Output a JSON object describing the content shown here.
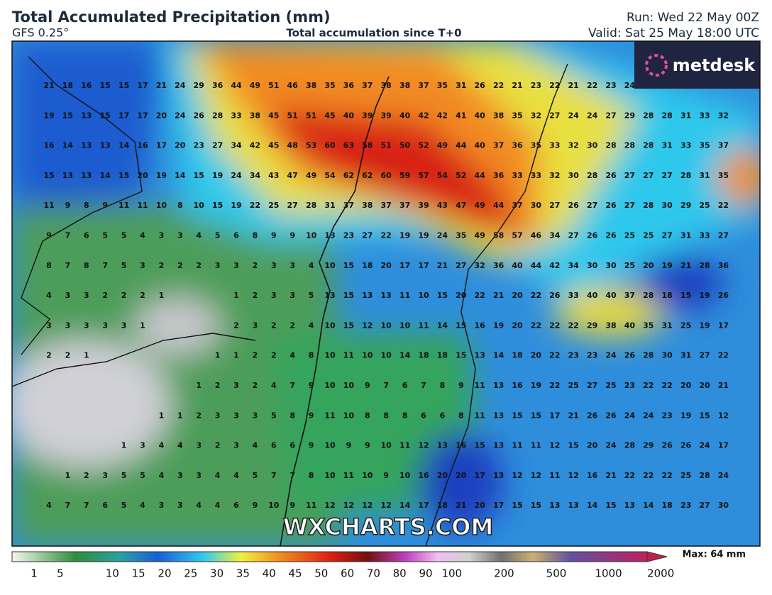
{
  "header": {
    "title": "Total Accumulated Precipitation (mm)",
    "model": "GFS 0.25°",
    "subtitle": "Total accumulation since T+0",
    "run": "Run: Wed 22 May 00Z",
    "valid": "Valid: Sat 25 May 18:00 UTC"
  },
  "map": {
    "values": [
      [
        21,
        18,
        16,
        15,
        15,
        17,
        21,
        24,
        29,
        36,
        44,
        49,
        51,
        46,
        38,
        35,
        36,
        37,
        38,
        38,
        37,
        35,
        31,
        26,
        22,
        21,
        23,
        22,
        21,
        22,
        23,
        24,
        null,
        null,
        null,
        null,
        null
      ],
      [
        19,
        15,
        13,
        15,
        17,
        17,
        20,
        24,
        26,
        28,
        33,
        38,
        45,
        51,
        51,
        45,
        40,
        39,
        39,
        40,
        42,
        42,
        41,
        40,
        38,
        35,
        32,
        27,
        24,
        24,
        27,
        29,
        28,
        28,
        31,
        33,
        32
      ],
      [
        16,
        14,
        13,
        13,
        14,
        16,
        17,
        20,
        23,
        27,
        34,
        42,
        45,
        48,
        53,
        60,
        63,
        58,
        51,
        50,
        52,
        49,
        44,
        40,
        37,
        36,
        35,
        33,
        32,
        30,
        28,
        28,
        28,
        31,
        33,
        35,
        37
      ],
      [
        15,
        13,
        13,
        14,
        15,
        20,
        19,
        14,
        15,
        19,
        24,
        34,
        43,
        47,
        49,
        54,
        62,
        62,
        60,
        59,
        57,
        54,
        52,
        44,
        36,
        33,
        33,
        32,
        30,
        28,
        26,
        27,
        27,
        27,
        28,
        31,
        35
      ],
      [
        11,
        9,
        8,
        9,
        11,
        11,
        10,
        8,
        10,
        15,
        19,
        22,
        25,
        27,
        28,
        31,
        37,
        38,
        37,
        37,
        39,
        43,
        47,
        49,
        44,
        37,
        30,
        27,
        26,
        27,
        26,
        27,
        28,
        30,
        29,
        25,
        22
      ],
      [
        9,
        7,
        6,
        5,
        5,
        4,
        3,
        3,
        4,
        5,
        6,
        8,
        9,
        9,
        10,
        13,
        23,
        27,
        22,
        19,
        19,
        24,
        35,
        49,
        58,
        57,
        46,
        34,
        27,
        26,
        26,
        25,
        25,
        27,
        31,
        33,
        27
      ],
      [
        8,
        7,
        8,
        7,
        5,
        3,
        2,
        2,
        2,
        3,
        3,
        2,
        3,
        3,
        4,
        10,
        15,
        18,
        20,
        17,
        17,
        21,
        27,
        32,
        36,
        40,
        44,
        42,
        34,
        30,
        30,
        25,
        20,
        19,
        21,
        28,
        36
      ],
      [
        4,
        3,
        3,
        2,
        2,
        2,
        1,
        null,
        null,
        null,
        1,
        2,
        3,
        3,
        5,
        13,
        15,
        13,
        13,
        11,
        10,
        15,
        20,
        22,
        21,
        20,
        22,
        26,
        33,
        40,
        40,
        37,
        28,
        18,
        15,
        19,
        26
      ],
      [
        3,
        3,
        3,
        3,
        3,
        1,
        null,
        null,
        null,
        null,
        2,
        3,
        2,
        2,
        4,
        10,
        15,
        12,
        10,
        10,
        11,
        14,
        15,
        16,
        19,
        20,
        22,
        22,
        22,
        29,
        38,
        40,
        35,
        31,
        25,
        19,
        17
      ],
      [
        2,
        2,
        1,
        null,
        null,
        null,
        null,
        null,
        null,
        1,
        1,
        2,
        2,
        4,
        8,
        10,
        11,
        10,
        10,
        14,
        18,
        18,
        15,
        13,
        14,
        18,
        20,
        22,
        23,
        23,
        24,
        26,
        28,
        30,
        31,
        27,
        22
      ],
      [
        null,
        null,
        null,
        null,
        null,
        null,
        null,
        null,
        1,
        2,
        3,
        2,
        4,
        7,
        9,
        10,
        10,
        9,
        7,
        6,
        7,
        8,
        9,
        11,
        13,
        16,
        19,
        22,
        25,
        27,
        25,
        23,
        22,
        22,
        20,
        20,
        21
      ],
      [
        null,
        null,
        null,
        null,
        null,
        null,
        1,
        1,
        2,
        3,
        3,
        3,
        5,
        8,
        9,
        11,
        10,
        8,
        8,
        8,
        6,
        6,
        8,
        11,
        13,
        15,
        15,
        17,
        21,
        26,
        26,
        24,
        24,
        23,
        19,
        15,
        12
      ],
      [
        null,
        null,
        null,
        null,
        1,
        3,
        4,
        4,
        3,
        2,
        3,
        4,
        6,
        6,
        9,
        10,
        9,
        9,
        10,
        11,
        12,
        13,
        16,
        15,
        13,
        11,
        11,
        12,
        15,
        20,
        24,
        28,
        29,
        26,
        26,
        24,
        17
      ],
      [
        null,
        1,
        2,
        3,
        5,
        5,
        4,
        3,
        3,
        4,
        4,
        5,
        7,
        7,
        8,
        10,
        11,
        10,
        9,
        10,
        16,
        20,
        20,
        17,
        13,
        12,
        12,
        11,
        12,
        16,
        21,
        22,
        22,
        22,
        25,
        28,
        24
      ],
      [
        4,
        7,
        7,
        6,
        5,
        4,
        3,
        3,
        4,
        4,
        6,
        9,
        10,
        9,
        11,
        12,
        12,
        12,
        12,
        14,
        17,
        18,
        21,
        20,
        17,
        15,
        15,
        13,
        13,
        14,
        15,
        13,
        14,
        18,
        23,
        27,
        30
      ]
    ]
  },
  "logo": "metdesk",
  "watermark": "WXCHARTS.COM",
  "colorbar": {
    "ticks": [
      1,
      5,
      10,
      15,
      20,
      25,
      30,
      35,
      40,
      45,
      50,
      60,
      70,
      80,
      90,
      100,
      200,
      500,
      1000,
      2000
    ],
    "max_label": "Max: 64 mm"
  }
}
